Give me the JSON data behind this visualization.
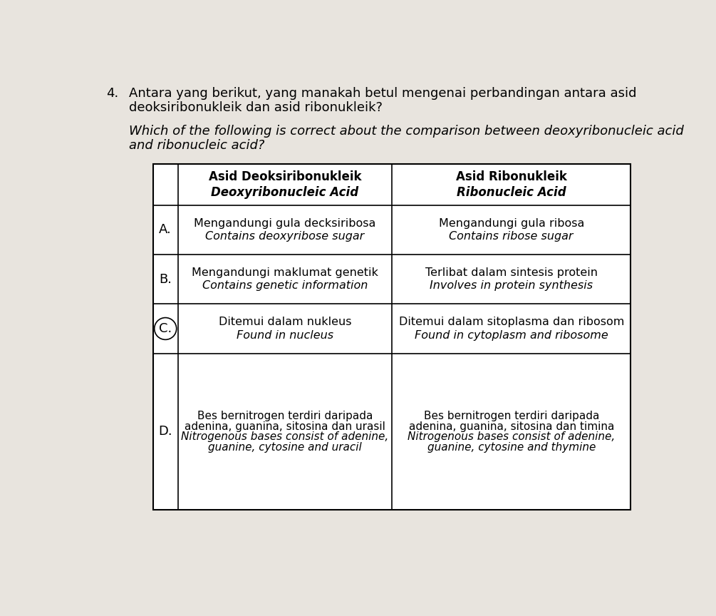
{
  "background_color": "#e8e4de",
  "white_paper_color": "#f0ede8",
  "question_number": "4.",
  "question_malay_line1": "Antara yang berikut, yang manakah betul mengenai perbandingan antara asid",
  "question_malay_line2": "deoksiribonukleik dan asid ribonukleik?",
  "question_english_line1": "Which of the following is correct about the comparison between deoxyribonucleic acid",
  "question_english_line2": "and ribonucleic acid?",
  "col1_header_line1": "Asid Deoksiribonukleik",
  "col1_header_line2": "Deoxyribonucleic Acid",
  "col2_header_line1": "Asid Ribonukleik",
  "col2_header_line2": "Ribonucleic Acid",
  "rows": [
    {
      "label": "A.",
      "col1_line1": "Mengandungi gula decksiribosa",
      "col1_line2": "Contains deoxyribose sugar",
      "col2_line1": "Mengandungi gula ribosa",
      "col2_line2": "Contains ribose sugar",
      "has_circle": false
    },
    {
      "label": "B.",
      "col1_line1": "Mengandungi maklumat genetik",
      "col1_line2": "Contains genetic information",
      "col2_line1": "Terlibat dalam sintesis protein",
      "col2_line2": "Involves in protein synthesis",
      "has_circle": false
    },
    {
      "label": "C.",
      "col1_line1": "Ditemui dalam nukleus",
      "col1_line2": "Found in nucleus",
      "col2_line1": "Ditemui dalam sitoplasma dan ribosom",
      "col2_line2": "Found in cytoplasm and ribosome",
      "has_circle": true
    },
    {
      "label": "D.",
      "col1_lines": [
        "Bes bernitrogen terdiri daripada",
        "adenina, guanina, sitosina dan urasil",
        "Nitrogenous bases consist of adenine,",
        "guanine, cytosine and uracil"
      ],
      "col1_italic": [
        false,
        false,
        true,
        true
      ],
      "col2_lines": [
        "Bes bernitrogen terdiri daripada",
        "adenina, guanina, sitosina dan timina",
        "Nitrogenous bases consist of adenine,",
        "guanine, cytosine and thymine"
      ],
      "col2_italic": [
        false,
        false,
        true,
        true
      ],
      "has_circle": false
    }
  ],
  "font_size_question": 13,
  "font_size_header": 12,
  "font_size_cell": 11.5,
  "font_size_label": 13
}
